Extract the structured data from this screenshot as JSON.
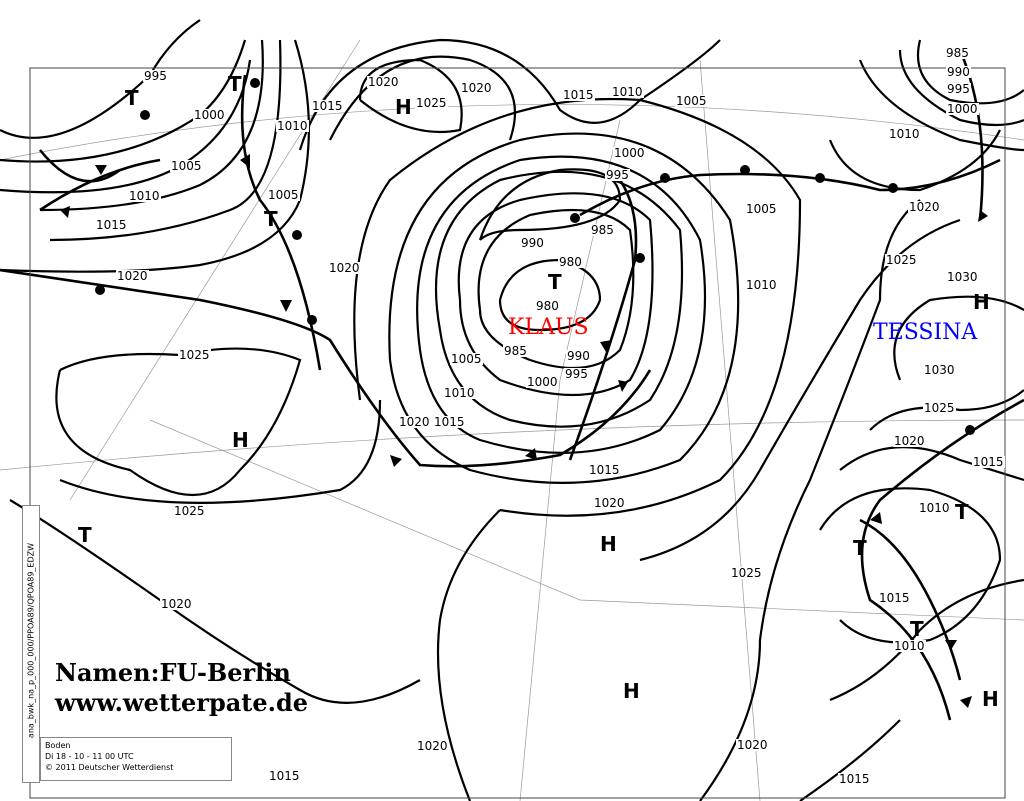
{
  "map": {
    "lows": [
      {
        "name": "KLAUS",
        "color": "#ff0000"
      },
      {
        "name": "TESSINA",
        "color": "#0000ff"
      }
    ],
    "high_symbol": "H",
    "low_symbol": "T",
    "isobar_labels": [
      "995",
      "1000",
      "1005",
      "1010",
      "1015",
      "1020",
      "1025",
      "1025",
      "1020",
      "1020",
      "1015",
      "1015",
      "1020",
      "1010",
      "1005",
      "1000",
      "995",
      "990",
      "985",
      "980",
      "980",
      "985",
      "990",
      "995",
      "1000",
      "1005",
      "1010",
      "1015",
      "1020",
      "1025",
      "1020",
      "1015",
      "1010",
      "1005",
      "1020",
      "985",
      "990",
      "995",
      "1000",
      "1010",
      "1005",
      "1010",
      "1020",
      "1025",
      "1030",
      "1030",
      "1025",
      "1020",
      "1015",
      "1010",
      "1015",
      "1010",
      "1020",
      "1015",
      "1025",
      "1020",
      "1015"
    ],
    "credit_line1": "Namen:FU-Berlin",
    "credit_line2": "www.wetterpate.de",
    "info": {
      "line1": "Boden",
      "line2": "Di  18 - 10 - 11  00  UTC",
      "line3": "© 2011  Deutscher Wetterdienst"
    },
    "side_code": "ana_bwk_na_p_000_000/PPOA89/QPOA89_EDZW"
  }
}
